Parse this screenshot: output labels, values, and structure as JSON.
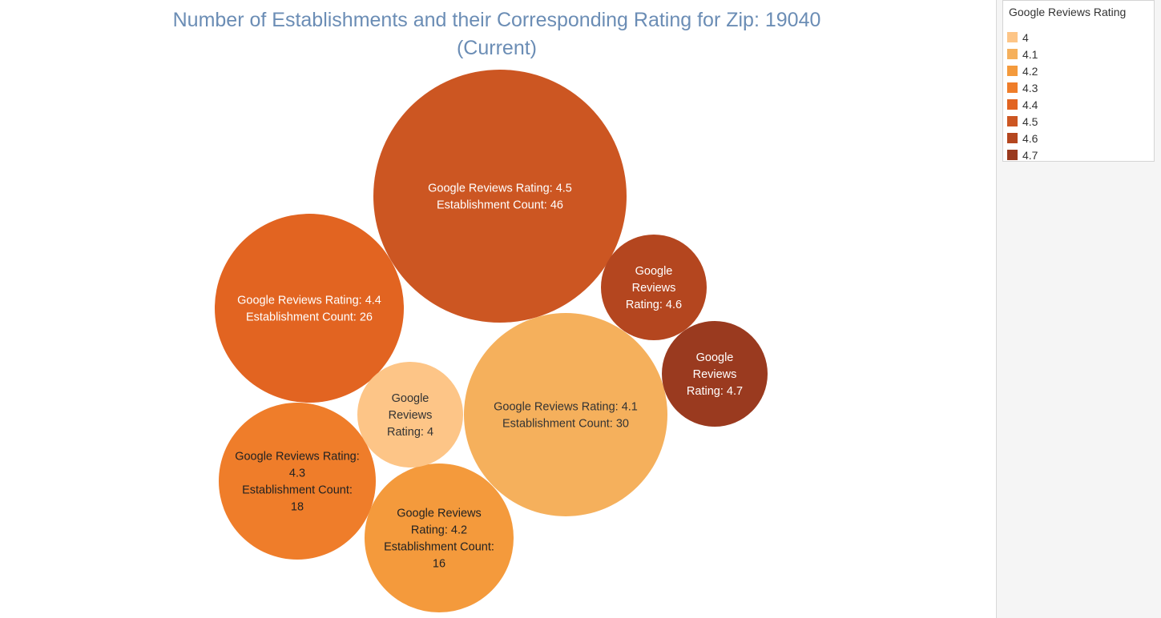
{
  "chart_data": {
    "type": "packed-bubble",
    "title": "Number of Establishments and their Corresponding Rating for Zip: 19040 (Current)",
    "title_lines": [
      "Number of Establishments and their Corresponding Rating for Zip: 19040",
      "(Current)"
    ],
    "size_measure": "Establishment Count",
    "color_measure": "Google Reviews Rating",
    "bubbles": [
      {
        "rating": "4.5",
        "count": 46,
        "color": "#cc5622",
        "text_color": "#ffffff",
        "lines": [
          "Google Reviews Rating: 4.5",
          "Establishment Count: 46"
        ]
      },
      {
        "rating": "4.1",
        "count": 30,
        "color": "#f5b05c",
        "text_color": "#333333",
        "lines": [
          "Google Reviews Rating: 4.1",
          "Establishment Count: 30"
        ]
      },
      {
        "rating": "4.4",
        "count": 26,
        "color": "#e26421",
        "text_color": "#ffffff",
        "lines": [
          "Google Reviews Rating: 4.4",
          "Establishment Count: 26"
        ]
      },
      {
        "rating": "4.3",
        "count": 18,
        "color": "#ef7d2a",
        "text_color": "#222222",
        "lines": [
          "Google Reviews Rating:",
          "4.3",
          "Establishment Count:",
          "18"
        ]
      },
      {
        "rating": "4.2",
        "count": 16,
        "color": "#f49a3c",
        "text_color": "#222222",
        "lines": [
          "Google Reviews",
          "Rating: 4.2",
          "Establishment Count:",
          "16"
        ]
      },
      {
        "rating": "4.6",
        "count": 8,
        "color": "#b4461f",
        "text_color": "#ffffff",
        "lines": [
          "Google",
          "Reviews",
          "Rating: 4.6"
        ]
      },
      {
        "rating": "4.7",
        "count": 8,
        "color": "#9a3a1f",
        "text_color": "#ffffff",
        "lines": [
          "Google",
          "Reviews",
          "Rating: 4.7"
        ]
      },
      {
        "rating": "4",
        "count": 8,
        "color": "#fdc587",
        "text_color": "#333333",
        "lines": [
          "Google",
          "Reviews",
          "Rating: 4"
        ]
      }
    ],
    "legend": {
      "title": "Google Reviews Rating",
      "placement": "top-right",
      "items": [
        {
          "label": "4",
          "color": "#fdc587"
        },
        {
          "label": "4.1",
          "color": "#f5b05c"
        },
        {
          "label": "4.2",
          "color": "#f49a3c"
        },
        {
          "label": "4.3",
          "color": "#ef7d2a"
        },
        {
          "label": "4.4",
          "color": "#e26421"
        },
        {
          "label": "4.5",
          "color": "#cc5622"
        },
        {
          "label": "4.6",
          "color": "#b4461f"
        },
        {
          "label": "4.7",
          "color": "#9a3a1f"
        }
      ]
    }
  }
}
